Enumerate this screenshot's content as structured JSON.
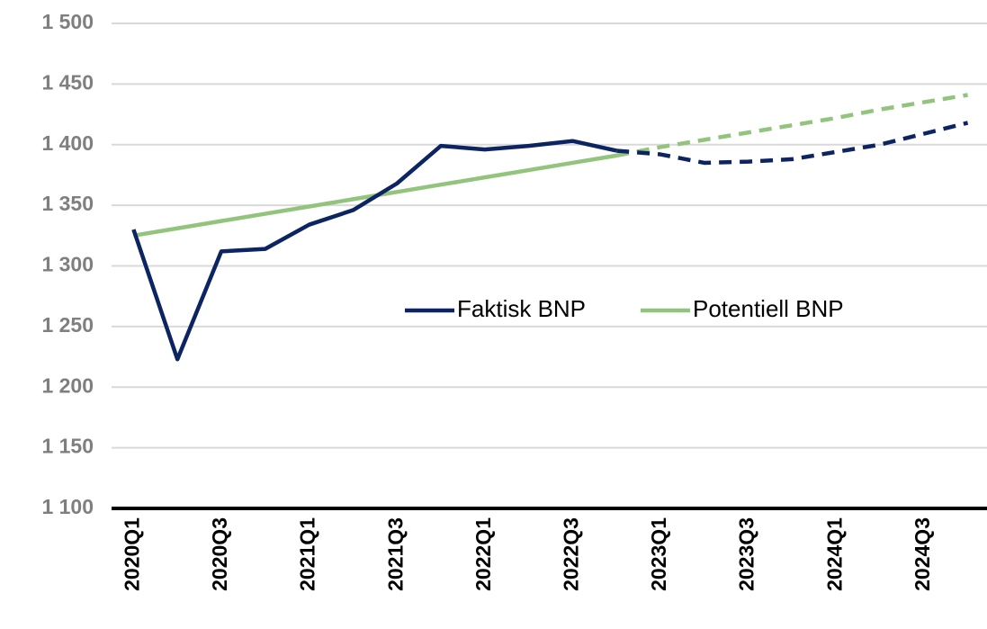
{
  "chart_data": {
    "type": "line",
    "categories": [
      "2020Q1",
      null,
      "2020Q3",
      null,
      "2021Q1",
      null,
      "2021Q3",
      null,
      "2022Q1",
      null,
      "2022Q3",
      null,
      "2023Q1",
      null,
      "2023Q3",
      null,
      "2024Q1",
      null,
      "2024Q3",
      null
    ],
    "series": [
      {
        "name": "Faktisk BNP",
        "color": "#0c2461",
        "dashed_from_index": 11,
        "values": [
          1330,
          1223,
          1312,
          1314,
          1334,
          1346,
          1368,
          1399,
          1396,
          1399,
          1403,
          1395,
          1392,
          1385,
          1386,
          1388,
          1394,
          1400,
          1409,
          1418
        ]
      },
      {
        "name": "Potentiell BNP",
        "color": "#93c47d",
        "dashed_from_index": 11,
        "values": [
          1325,
          1331,
          1337,
          1343,
          1349,
          1355,
          1361,
          1367,
          1373,
          1379,
          1385,
          1391,
          1398,
          1404,
          1410,
          1416,
          1422,
          1429,
          1435,
          1441
        ]
      }
    ],
    "ylim": [
      1100,
      1500
    ],
    "yticks": [
      {
        "value": 1100,
        "label": "1 100"
      },
      {
        "value": 1150,
        "label": "1 150"
      },
      {
        "value": 1200,
        "label": "1 200"
      },
      {
        "value": 1250,
        "label": "1 250"
      },
      {
        "value": 1300,
        "label": "1 300"
      },
      {
        "value": 1350,
        "label": "1 350"
      },
      {
        "value": 1400,
        "label": "1 400"
      },
      {
        "value": 1450,
        "label": "1 450"
      },
      {
        "value": 1500,
        "label": "1 500"
      }
    ],
    "grid": true,
    "legend": "center"
  }
}
